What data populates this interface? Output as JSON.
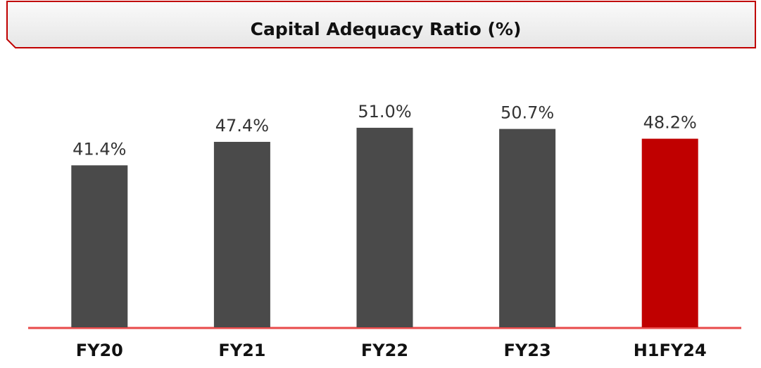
{
  "chart_data": {
    "type": "bar",
    "title": "Capital Adequacy Ratio (%)",
    "categories": [
      "FY20",
      "FY21",
      "FY22",
      "FY23",
      "H1FY24"
    ],
    "values": [
      41.4,
      47.4,
      51.0,
      50.7,
      48.2
    ],
    "value_labels": [
      "41.4%",
      "47.4%",
      "51.0%",
      "50.7%",
      "48.2%"
    ],
    "colors": [
      "#4a4a4a",
      "#4a4a4a",
      "#4a4a4a",
      "#4a4a4a",
      "#c00000"
    ]
  }
}
